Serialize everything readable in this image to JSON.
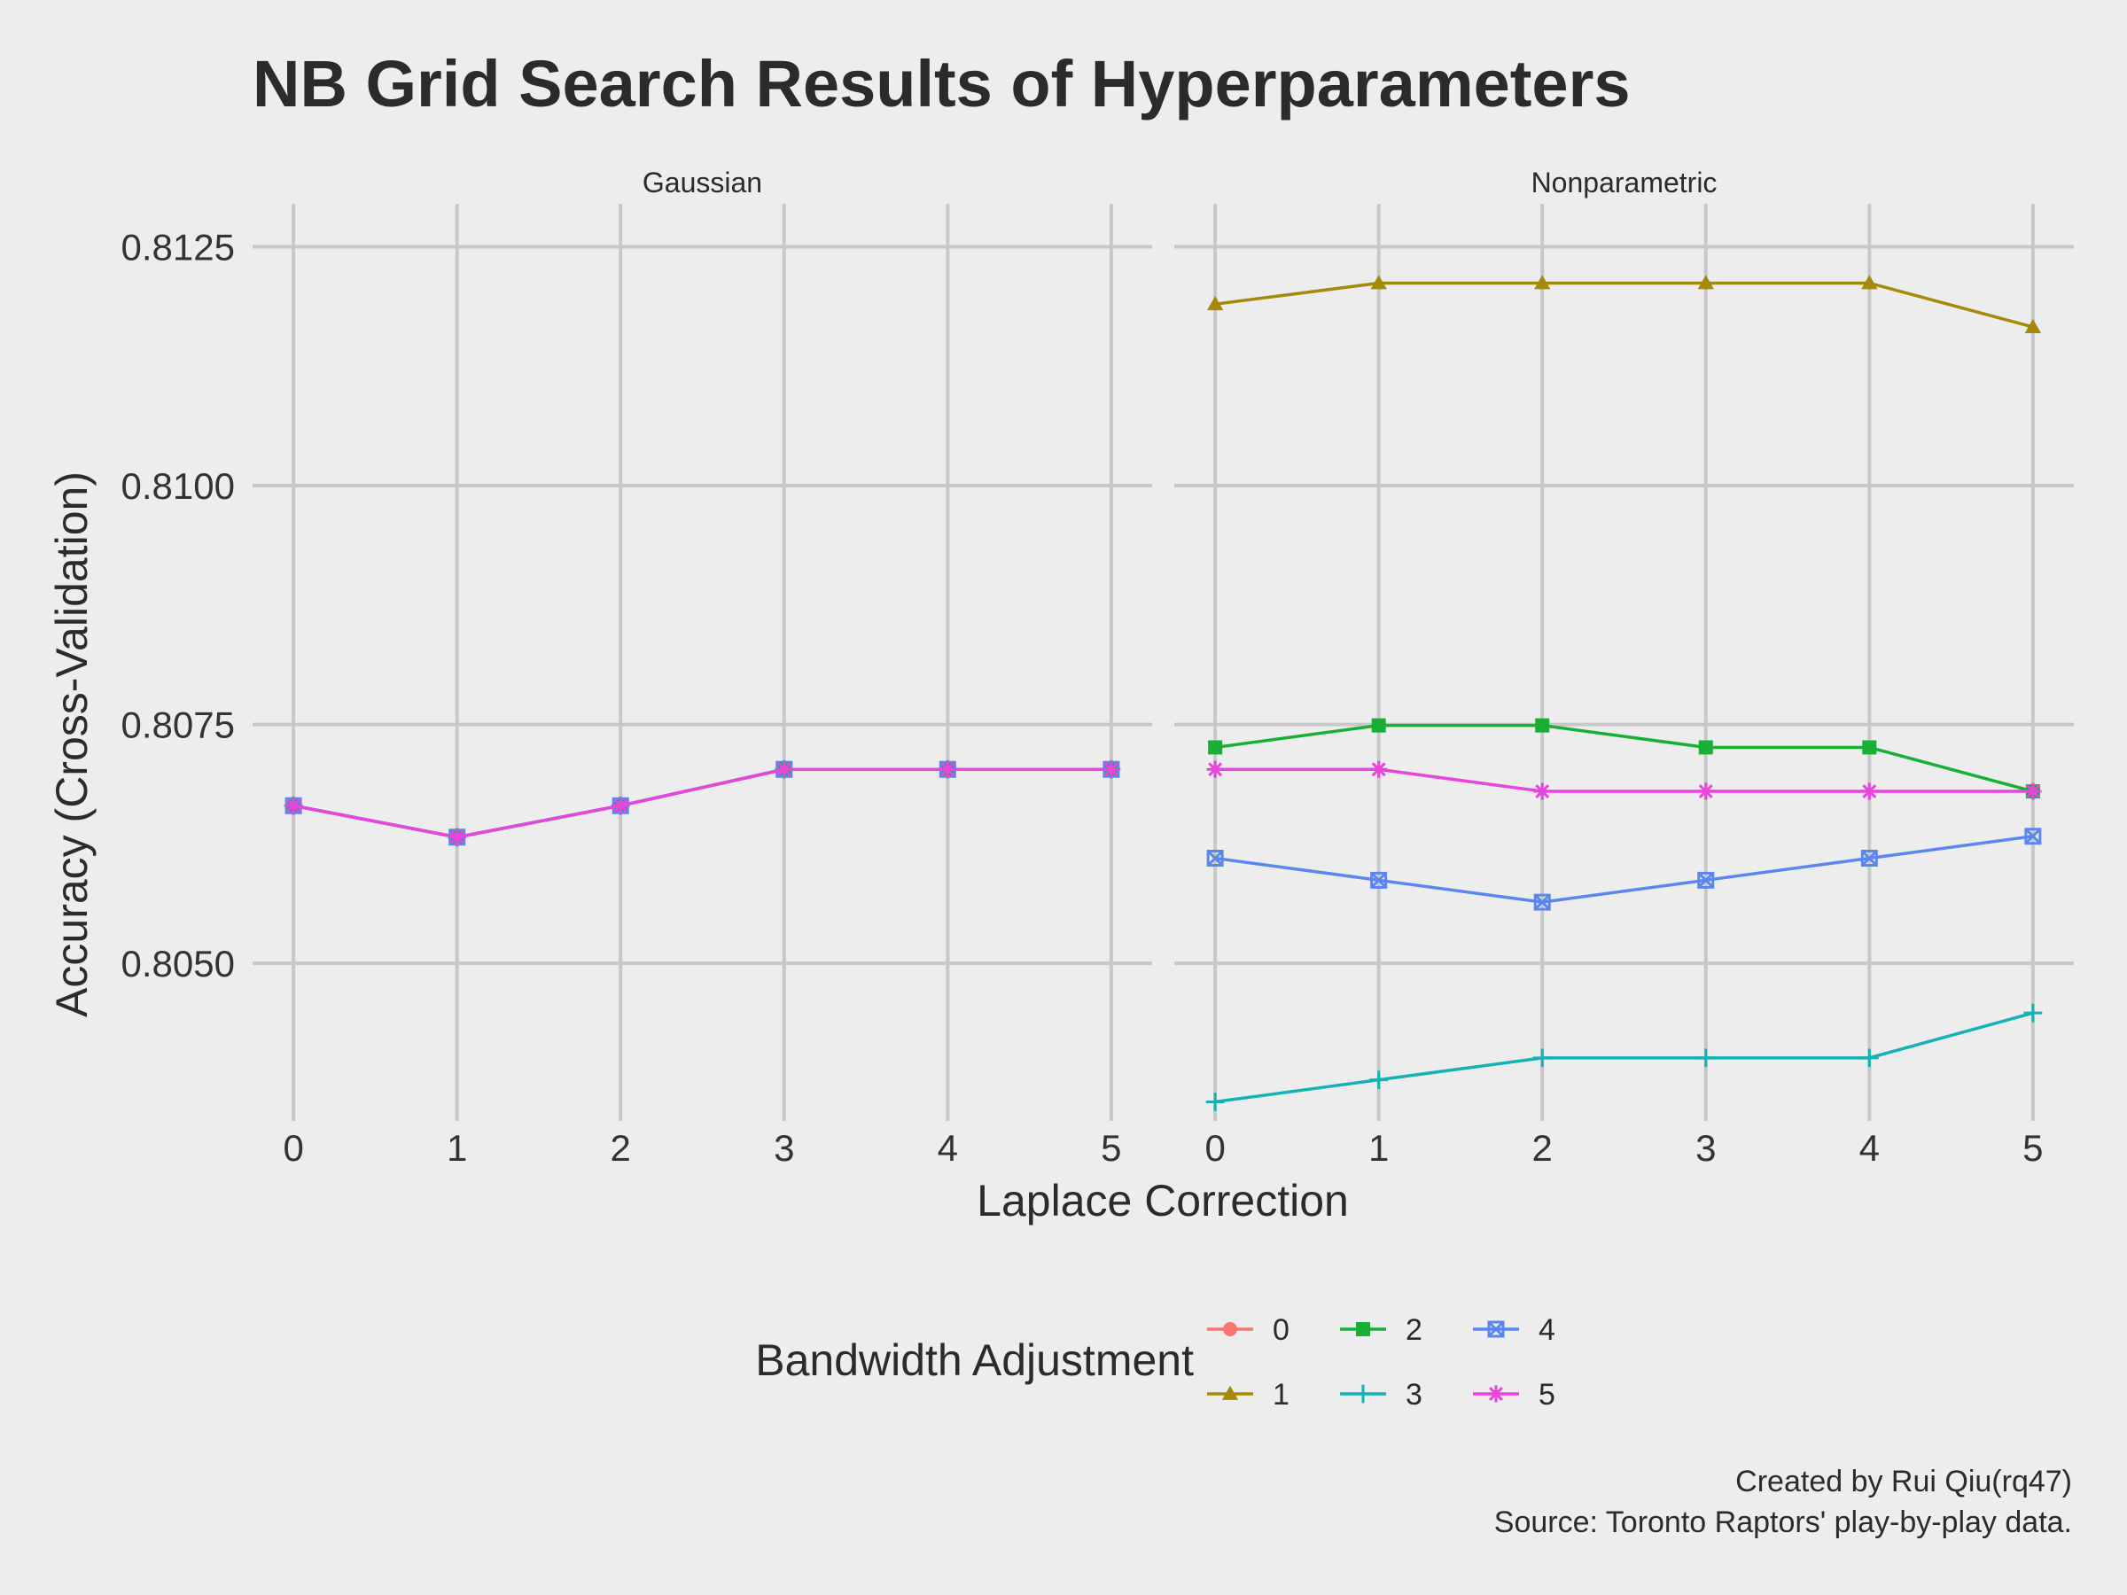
{
  "chart_data": {
    "type": "line",
    "title": "NB Grid Search Results of Hyperparameters",
    "xlabel": "Laplace Correction",
    "ylabel": "Accuracy (Cross-Validation)",
    "x": [
      0,
      1,
      2,
      3,
      4,
      5
    ],
    "xlim": [
      -0.25,
      5.25
    ],
    "ylim": [
      0.80335,
      0.81295
    ],
    "yticks": [
      0.805,
      0.8075,
      0.81,
      0.8125
    ],
    "ytick_labels": [
      "0.8050",
      "0.8075",
      "0.8100",
      "0.8125"
    ],
    "grid": true,
    "legend": {
      "title": "Bandwidth Adjustment",
      "position": "bottom",
      "entries": [
        "0",
        "1",
        "2",
        "3",
        "4",
        "5"
      ]
    },
    "series_style": {
      "0": {
        "color": "#f8766d",
        "marker": "circle"
      },
      "1": {
        "color": "#a58a0a",
        "marker": "triangle"
      },
      "2": {
        "color": "#18b034",
        "marker": "square"
      },
      "3": {
        "color": "#14b2b5",
        "marker": "plus"
      },
      "4": {
        "color": "#5b86f0",
        "marker": "square-cross"
      },
      "5": {
        "color": "#e845dd",
        "marker": "asterisk"
      }
    },
    "facets": [
      {
        "label": "Gaussian",
        "series": [
          {
            "name": "0",
            "values": [
              0.80665,
              0.80632,
              0.80665,
              0.80703,
              0.80703,
              0.80703
            ]
          },
          {
            "name": "1",
            "values": [
              0.80665,
              0.80632,
              0.80665,
              0.80703,
              0.80703,
              0.80703
            ]
          },
          {
            "name": "2",
            "values": [
              0.80665,
              0.80632,
              0.80665,
              0.80703,
              0.80703,
              0.80703
            ]
          },
          {
            "name": "3",
            "values": [
              0.80665,
              0.80632,
              0.80665,
              0.80703,
              0.80703,
              0.80703
            ]
          },
          {
            "name": "4",
            "values": [
              0.80665,
              0.80632,
              0.80665,
              0.80703,
              0.80703,
              0.80703
            ]
          },
          {
            "name": "5",
            "values": [
              0.80665,
              0.80632,
              0.80665,
              0.80703,
              0.80703,
              0.80703
            ]
          }
        ]
      },
      {
        "label": "Nonparametric",
        "series": [
          {
            "name": "1",
            "values": [
              0.8119,
              0.81212,
              0.81212,
              0.81212,
              0.81212,
              0.81166
            ]
          },
          {
            "name": "2",
            "values": [
              0.80726,
              0.80749,
              0.80749,
              0.80726,
              0.80726,
              0.8068
            ]
          },
          {
            "name": "5",
            "values": [
              0.80703,
              0.80703,
              0.8068,
              0.8068,
              0.8068,
              0.8068
            ]
          },
          {
            "name": "4",
            "values": [
              0.8061,
              0.80587,
              0.80564,
              0.80587,
              0.8061,
              0.80633
            ]
          },
          {
            "name": "3",
            "values": [
              0.80355,
              0.80378,
              0.80401,
              0.80401,
              0.80401,
              0.80448
            ]
          }
        ]
      }
    ]
  },
  "caption": {
    "line1": "Created by Rui Qiu(rq47)",
    "line2": "Source: Toronto Raptors' play-by-play data."
  }
}
